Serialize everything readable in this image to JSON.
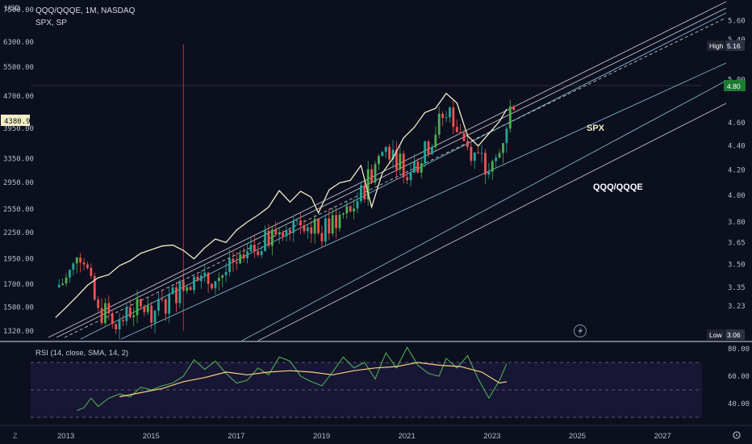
{
  "header": {
    "currency": "USD",
    "symbol_line": "QQQ/QQQE, 1M, NASDAQ",
    "compare_line": "SPX, SP"
  },
  "annotations": {
    "spx_label": "SPX",
    "ratio_label": "QQQ/QQQE"
  },
  "price_scale_tags": {
    "left_current": "4380.92",
    "high_label": "High",
    "high_value": "5.16",
    "last_value": "4.80",
    "low_label": "Low",
    "low_value": "3.06"
  },
  "rsi": {
    "title": "RSI (14, close, SMA, 14, 2)",
    "ticks": [
      "80.00",
      "60.00",
      "40.00"
    ],
    "band_upper": 70,
    "band_mid": 50,
    "band_lower": 30
  },
  "time_axis": {
    "ticks": [
      "2013",
      "2015",
      "2017",
      "2019",
      "2021",
      "2023",
      "2025",
      "2027"
    ]
  },
  "bottom_icons": {
    "left": "Z",
    "right": "gear-icon"
  },
  "colors": {
    "background": "#0c0f1e",
    "up_candle": "#26a69a",
    "up_candle_bright": "#4caf50",
    "down_candle": "#ef5350",
    "spx_line": "#f1eec7",
    "channel_lines": "#8fd3e6",
    "trend_lines": "#e0e0e0",
    "rsi_line": "#4caf50",
    "rsi_ma": "#f5d17b",
    "vertical_marker": "#b2213a",
    "last_value_tag": "#1e7b34"
  },
  "chart_data": [
    {
      "type": "line",
      "title": "QQQ/QQQE, 1M, NASDAQ",
      "ylabel": "",
      "xlabel": "",
      "x_range": [
        "2012-03",
        "2027-12"
      ],
      "left_axis": {
        "label": "USD",
        "scale": "log",
        "ticks": [
          "7500.00",
          "6300.00",
          "5500.00",
          "4700.00",
          "3950.00",
          "3350.00",
          "2950.00",
          "2550.00",
          "2250.00",
          "1950.00",
          "1700.00",
          "1500.00",
          "1320.00"
        ]
      },
      "right_axis": {
        "scale": "log",
        "ticks": [
          "5.60",
          "5.40",
          "5.00",
          "4.60",
          "4.40",
          "4.20",
          "4.00",
          "3.80",
          "3.65",
          "3.50",
          "3.35",
          "3.23",
          "3.06"
        ]
      },
      "series": [
        {
          "name": "QQQ/QQQE",
          "axis": "right",
          "style": "candlestick",
          "points": [
            [
              "2012-10",
              3.35
            ],
            [
              "2013-01",
              3.4
            ],
            [
              "2013-03",
              3.48
            ],
            [
              "2013-04",
              3.6
            ],
            [
              "2013-06",
              3.55
            ],
            [
              "2013-08",
              3.35
            ],
            [
              "2013-10",
              3.18
            ],
            [
              "2014-01",
              3.2
            ],
            [
              "2014-04",
              3.12
            ],
            [
              "2014-07",
              3.2
            ],
            [
              "2014-10",
              3.22
            ],
            [
              "2015-01",
              3.2
            ],
            [
              "2015-04",
              3.23
            ],
            [
              "2015-07",
              3.3
            ],
            [
              "2015-10",
              3.36
            ],
            [
              "2016-01",
              3.4
            ],
            [
              "2016-04",
              3.38
            ],
            [
              "2016-07",
              3.42
            ],
            [
              "2016-10",
              3.45
            ],
            [
              "2017-01",
              3.5
            ],
            [
              "2017-04",
              3.55
            ],
            [
              "2017-07",
              3.62
            ],
            [
              "2017-10",
              3.68
            ],
            [
              "2018-01",
              3.75
            ],
            [
              "2018-04",
              3.8
            ],
            [
              "2018-07",
              3.84
            ],
            [
              "2018-10",
              3.76
            ],
            [
              "2019-01",
              3.72
            ],
            [
              "2019-04",
              3.8
            ],
            [
              "2019-07",
              3.85
            ],
            [
              "2019-10",
              3.92
            ],
            [
              "2020-01",
              4.05
            ],
            [
              "2020-04",
              4.25
            ],
            [
              "2020-07",
              4.4
            ],
            [
              "2020-10",
              4.3
            ],
            [
              "2021-01",
              4.2
            ],
            [
              "2021-04",
              4.25
            ],
            [
              "2021-07",
              4.4
            ],
            [
              "2021-10",
              4.6
            ],
            [
              "2021-12",
              4.7
            ],
            [
              "2022-03",
              4.58
            ],
            [
              "2022-06",
              4.4
            ],
            [
              "2022-09",
              4.3
            ],
            [
              "2022-12",
              4.15
            ],
            [
              "2023-03",
              4.35
            ],
            [
              "2023-05",
              4.6
            ],
            [
              "2023-07",
              4.8
            ]
          ]
        },
        {
          "name": "SPX",
          "axis": "left",
          "style": "line",
          "points": [
            [
              "2012-10",
              1420
            ],
            [
              "2013-01",
              1500
            ],
            [
              "2013-04",
              1590
            ],
            [
              "2013-07",
              1690
            ],
            [
              "2013-10",
              1760
            ],
            [
              "2014-01",
              1790
            ],
            [
              "2014-04",
              1880
            ],
            [
              "2014-07",
              1930
            ],
            [
              "2014-10",
              2010
            ],
            [
              "2015-01",
              2050
            ],
            [
              "2015-04",
              2090
            ],
            [
              "2015-07",
              2100
            ],
            [
              "2015-10",
              2040
            ],
            [
              "2016-01",
              1950
            ],
            [
              "2016-04",
              2070
            ],
            [
              "2016-07",
              2170
            ],
            [
              "2016-10",
              2130
            ],
            [
              "2017-01",
              2280
            ],
            [
              "2017-04",
              2380
            ],
            [
              "2017-07",
              2470
            ],
            [
              "2017-10",
              2580
            ],
            [
              "2018-01",
              2820
            ],
            [
              "2018-04",
              2650
            ],
            [
              "2018-07",
              2810
            ],
            [
              "2018-10",
              2720
            ],
            [
              "2018-12",
              2500
            ],
            [
              "2019-03",
              2830
            ],
            [
              "2019-06",
              2940
            ],
            [
              "2019-09",
              2980
            ],
            [
              "2019-12",
              3230
            ],
            [
              "2020-03",
              2580
            ],
            [
              "2020-06",
              3100
            ],
            [
              "2020-09",
              3360
            ],
            [
              "2020-12",
              3750
            ],
            [
              "2021-03",
              3970
            ],
            [
              "2021-06",
              4300
            ],
            [
              "2021-09",
              4400
            ],
            [
              "2021-12",
              4770
            ],
            [
              "2022-03",
              4530
            ],
            [
              "2022-06",
              3790
            ],
            [
              "2022-09",
              3590
            ],
            [
              "2022-12",
              3840
            ],
            [
              "2023-03",
              4100
            ],
            [
              "2023-05",
              4380
            ]
          ]
        }
      ],
      "vertical_marker": "2015-10",
      "legend": "top-left"
    },
    {
      "type": "line",
      "title": "RSI (14, close, SMA, 14, 2)",
      "ylabel": "",
      "xlabel": "",
      "ylim": [
        20,
        85
      ],
      "yticks": [
        "80.00",
        "60.00",
        "40.00"
      ],
      "bands": [
        70,
        50,
        30
      ],
      "series": [
        {
          "name": "RSI",
          "points": [
            [
              "2013-04",
              35
            ],
            [
              "2013-06",
              37
            ],
            [
              "2013-08",
              44
            ],
            [
              "2013-10",
              38
            ],
            [
              "2014-01",
              44
            ],
            [
              "2014-04",
              47
            ],
            [
              "2014-07",
              45
            ],
            [
              "2014-10",
              52
            ],
            [
              "2015-01",
              50
            ],
            [
              "2015-04",
              53
            ],
            [
              "2015-07",
              55
            ],
            [
              "2015-10",
              60
            ],
            [
              "2016-01",
              72
            ],
            [
              "2016-04",
              65
            ],
            [
              "2016-07",
              71
            ],
            [
              "2016-10",
              62
            ],
            [
              "2017-01",
              55
            ],
            [
              "2017-04",
              57
            ],
            [
              "2017-07",
              66
            ],
            [
              "2017-10",
              61
            ],
            [
              "2018-01",
              74
            ],
            [
              "2018-04",
              71
            ],
            [
              "2018-07",
              60
            ],
            [
              "2018-10",
              56
            ],
            [
              "2019-01",
              53
            ],
            [
              "2019-04",
              63
            ],
            [
              "2019-07",
              74
            ],
            [
              "2019-10",
              66
            ],
            [
              "2020-01",
              70
            ],
            [
              "2020-04",
              58
            ],
            [
              "2020-07",
              77
            ],
            [
              "2020-10",
              66
            ],
            [
              "2021-01",
              81
            ],
            [
              "2021-04",
              68
            ],
            [
              "2021-07",
              62
            ],
            [
              "2021-10",
              60
            ],
            [
              "2021-12",
              73
            ],
            [
              "2022-03",
              66
            ],
            [
              "2022-06",
              75
            ],
            [
              "2022-09",
              58
            ],
            [
              "2022-12",
              44
            ],
            [
              "2023-03",
              57
            ],
            [
              "2023-05",
              69
            ]
          ]
        },
        {
          "name": "RSI-based MA",
          "points": [
            [
              "2014-04",
              45
            ],
            [
              "2014-10",
              48
            ],
            [
              "2015-04",
              51
            ],
            [
              "2015-10",
              56
            ],
            [
              "2016-04",
              59
            ],
            [
              "2016-10",
              63
            ],
            [
              "2017-04",
              61
            ],
            [
              "2017-10",
              63
            ],
            [
              "2018-04",
              64
            ],
            [
              "2018-10",
              63
            ],
            [
              "2019-04",
              61
            ],
            [
              "2019-10",
              64
            ],
            [
              "2020-04",
              66
            ],
            [
              "2020-10",
              67
            ],
            [
              "2021-04",
              70
            ],
            [
              "2021-10",
              68
            ],
            [
              "2022-04",
              67
            ],
            [
              "2022-10",
              63
            ],
            [
              "2023-03",
              55
            ],
            [
              "2023-05",
              56
            ]
          ]
        }
      ],
      "legend": "top-left"
    }
  ]
}
